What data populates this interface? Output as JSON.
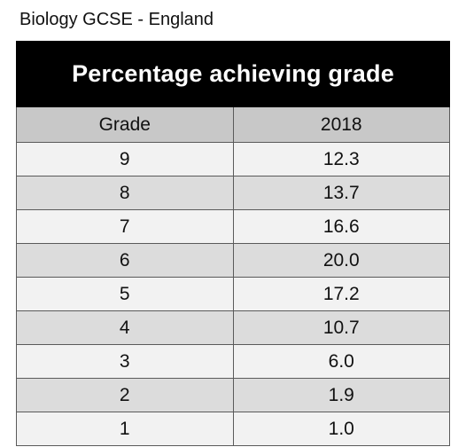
{
  "caption": "Biology GCSE - England",
  "table": {
    "title": "Percentage achieving grade",
    "columns": [
      "Grade",
      "2018"
    ],
    "rows": [
      {
        "grade": "9",
        "value": "12.3"
      },
      {
        "grade": "8",
        "value": "13.7"
      },
      {
        "grade": "7",
        "value": "16.6"
      },
      {
        "grade": "6",
        "value": "20.0"
      },
      {
        "grade": "5",
        "value": "17.2"
      },
      {
        "grade": "4",
        "value": "10.7"
      },
      {
        "grade": "3",
        "value": "6.0"
      },
      {
        "grade": "2",
        "value": "1.9"
      },
      {
        "grade": "1",
        "value": "1.0"
      }
    ]
  },
  "colors": {
    "title_bg": "#000000",
    "title_fg": "#ffffff",
    "header_bg": "#c8c8c8",
    "row_light": "#f2f2f2",
    "row_dark": "#dcdcdc",
    "border": "#5a5a5a"
  }
}
